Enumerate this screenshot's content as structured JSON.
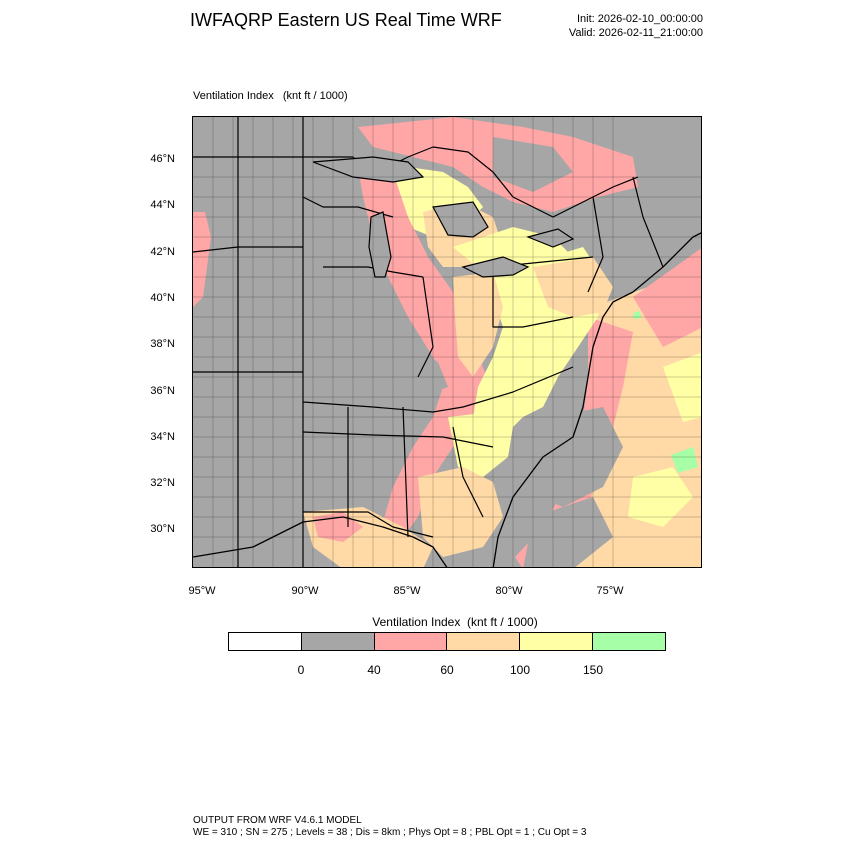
{
  "header": {
    "title": "IWFAQRP Eastern US Real Time WRF",
    "init": "Init: 2026-02-10_00:00:00",
    "valid": "Valid: 2026-02-11_21:00:00"
  },
  "map": {
    "field_label": "Ventilation Index   (knt ft / 1000)",
    "lat_ticks": [
      "46°N",
      "44°N",
      "42°N",
      "40°N",
      "38°N",
      "36°N",
      "34°N",
      "32°N",
      "30°N"
    ],
    "lon_ticks": [
      "95°W",
      "90°W",
      "85°W",
      "80°W",
      "75°W"
    ],
    "colors": {
      "lt0": "#ffffff",
      "c0_40": "#a6a6a6",
      "c40_60": "#ffa6a6",
      "c60_100": "#ffd9a6",
      "c100_150": "#ffffa6",
      "c150p": "#a6ffa6",
      "ocean_gray": "#a6a6a6",
      "boundary": "#000000"
    }
  },
  "colorbar": {
    "title": "Ventilation Index  (knt ft / 1000)",
    "colors": [
      "#ffffff",
      "#a6a6a6",
      "#ffa6a6",
      "#ffd9a6",
      "#ffffa6",
      "#a6ffa6"
    ],
    "labels": [
      "0",
      "40",
      "60",
      "100",
      "150"
    ]
  },
  "footer": {
    "line1": "OUTPUT FROM WRF V4.6.1 MODEL",
    "line2": "WE = 310 ; SN = 275 ; Levels = 38 ; Dis = 8km ; Phys Opt = 8 ; PBL Opt = 1 ; Cu Opt = 3"
  }
}
